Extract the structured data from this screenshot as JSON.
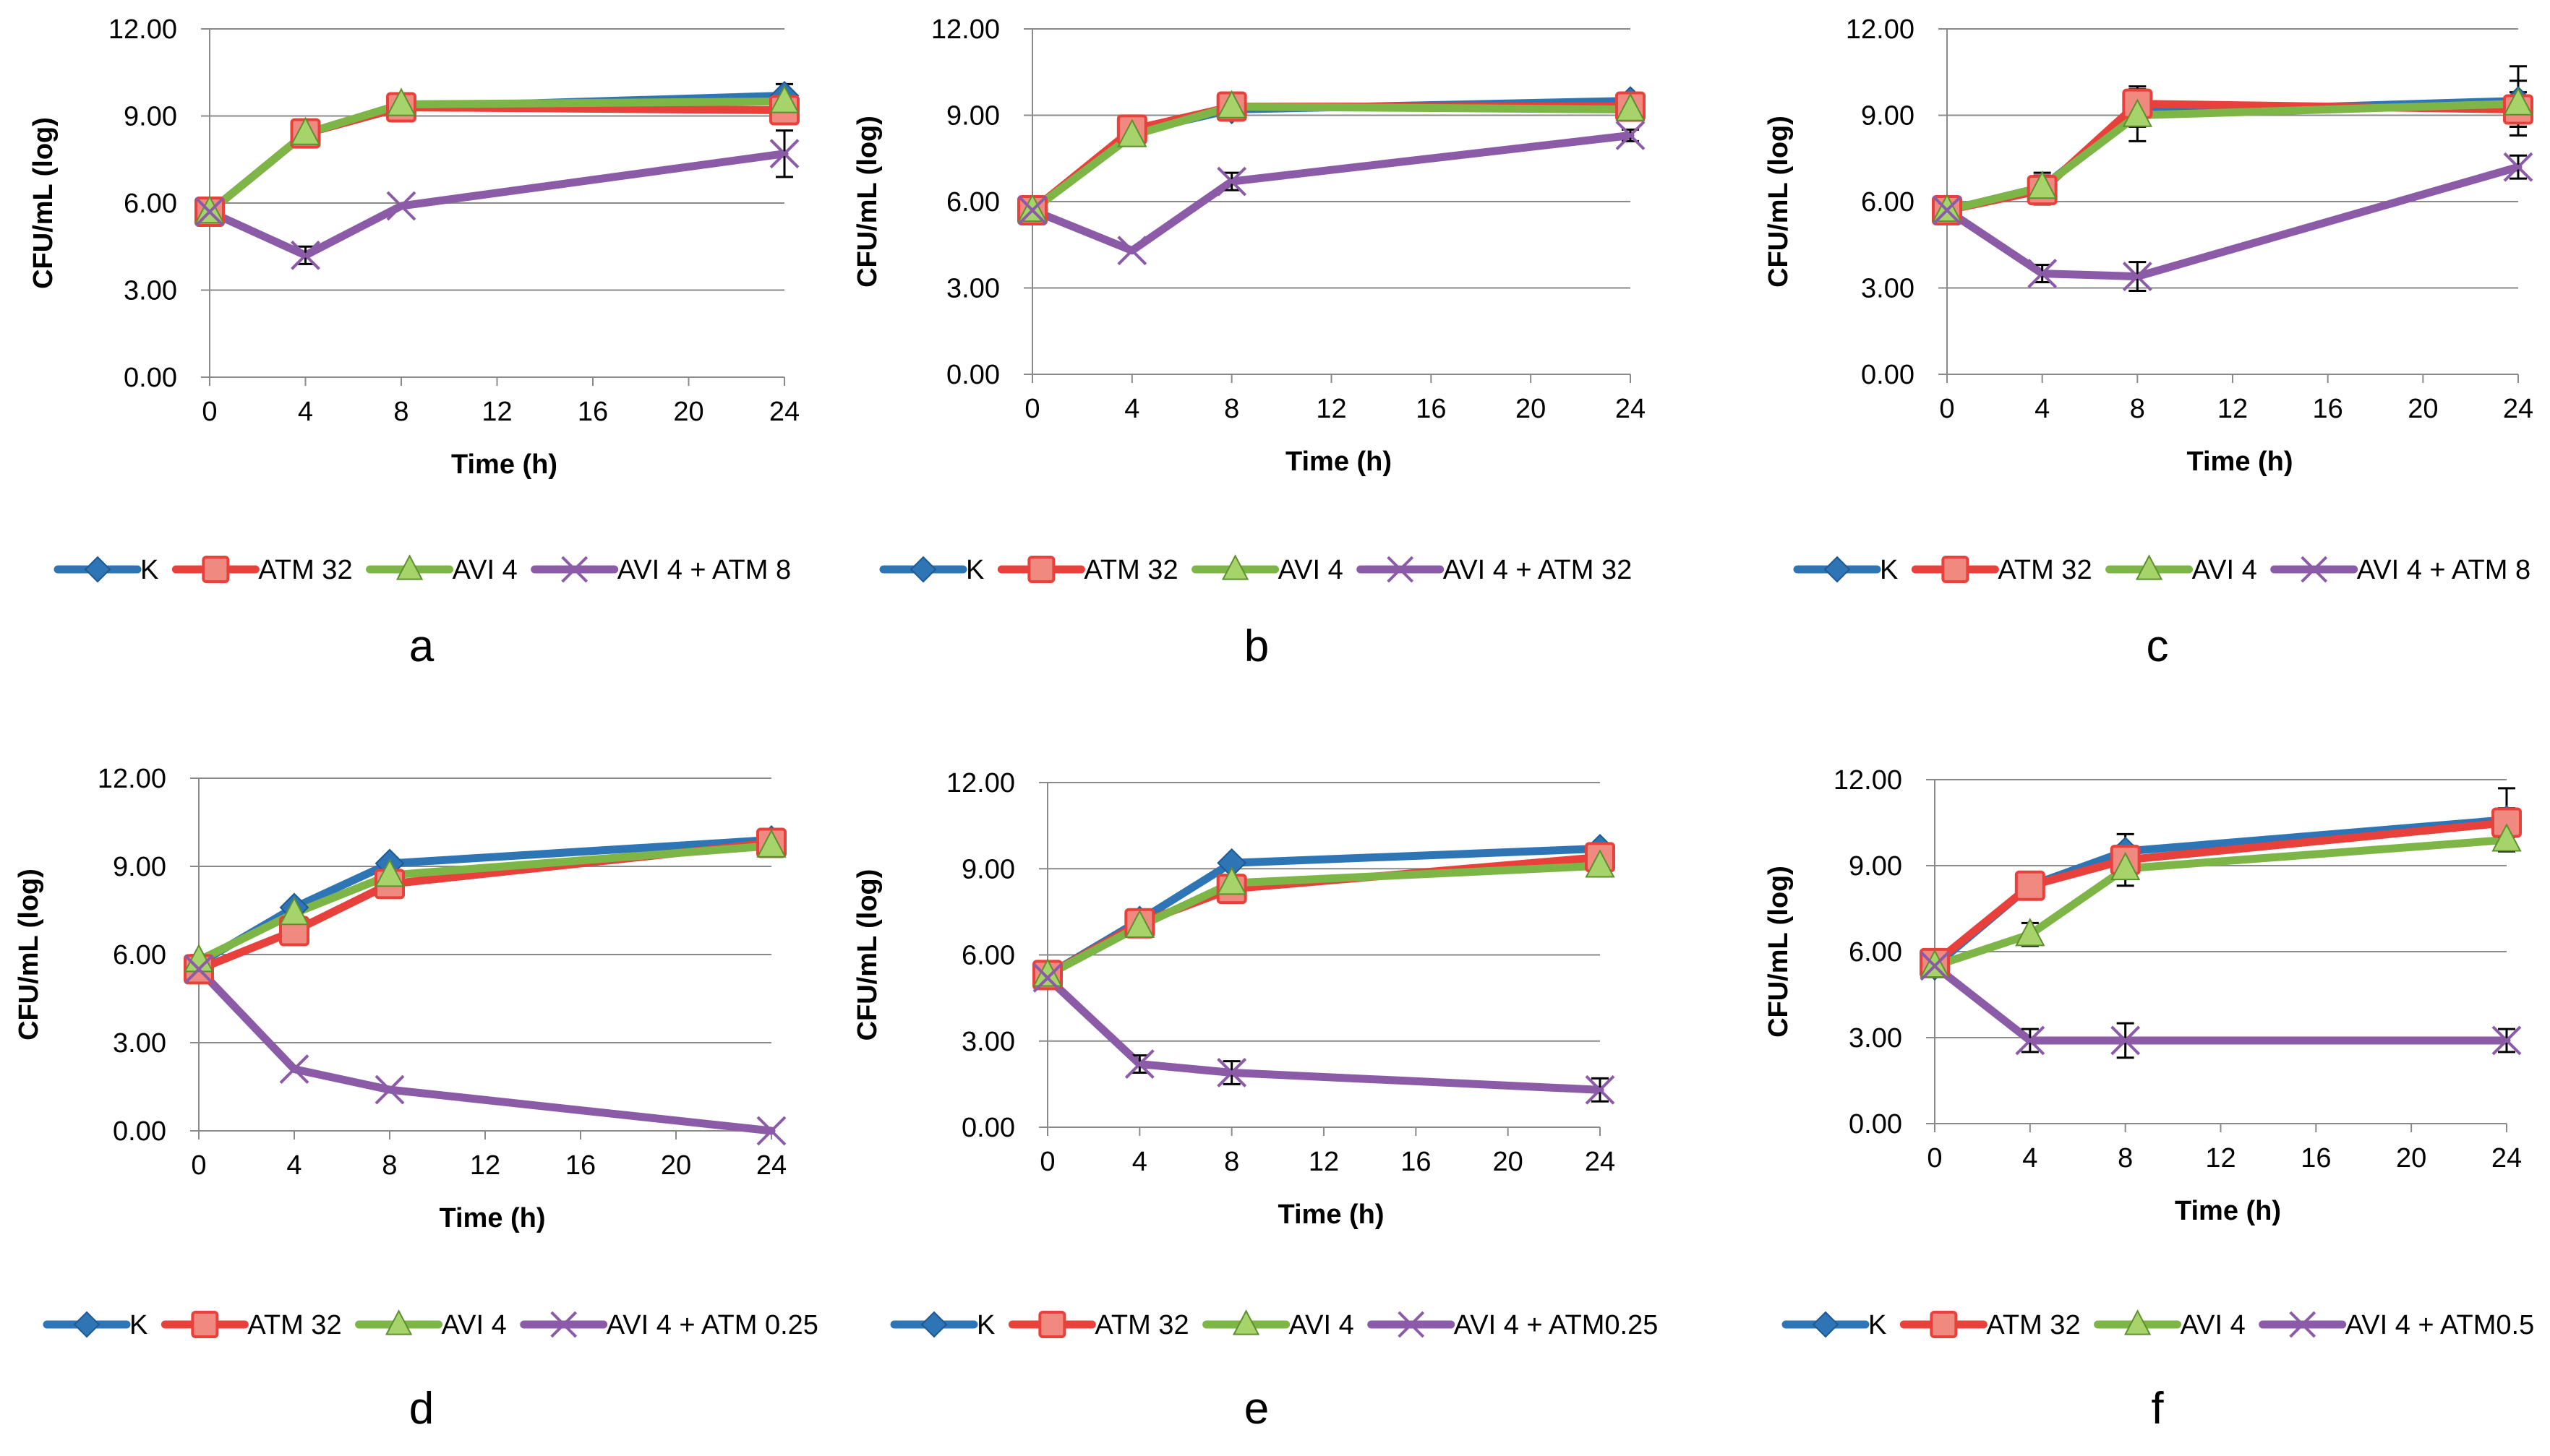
{
  "colors": {
    "K": "#2E75B6",
    "ATM 32": "#E8403A",
    "AVI 4": "#7DB547",
    "combo": "#8B5BA8",
    "grid": "#8A8A8A",
    "errorbar": "#000000"
  },
  "marker_icons": {
    "K": "diamond-icon",
    "ATM 32": "square-icon",
    "AVI 4": "triangle-icon",
    "combo": "x-mark-icon"
  },
  "chart_data": [
    {
      "type": "line",
      "panel": "a",
      "xlabel": "Time (h)",
      "ylabel": "CFU/mL (log)",
      "xticks": [
        "0",
        "4",
        "8",
        "12",
        "16",
        "20",
        "24"
      ],
      "yticks": [
        "0.00",
        "3.00",
        "6.00",
        "9.00",
        "12.00"
      ],
      "xlim": [
        0,
        24
      ],
      "ylim": [
        0,
        12
      ],
      "x": [
        0,
        4,
        8,
        24
      ],
      "series": [
        {
          "name": "K",
          "values": [
            5.7,
            8.4,
            9.3,
            9.7
          ],
          "errors": [
            0,
            0,
            0,
            0.4
          ]
        },
        {
          "name": "ATM 32",
          "values": [
            5.7,
            8.4,
            9.3,
            9.2
          ],
          "errors": [
            0,
            0,
            0,
            0.3
          ]
        },
        {
          "name": "AVI 4",
          "values": [
            5.7,
            8.4,
            9.4,
            9.5
          ],
          "errors": [
            0,
            0,
            0,
            0.3
          ]
        },
        {
          "name": "AVI 4 + ATM 8",
          "values": [
            5.7,
            4.2,
            5.9,
            7.7
          ],
          "errors": [
            0,
            0.3,
            0,
            0.8
          ]
        }
      ]
    },
    {
      "type": "line",
      "panel": "b",
      "xlabel": "Time (h)",
      "ylabel": "CFU/mL (log)",
      "xticks": [
        "0",
        "4",
        "8",
        "12",
        "16",
        "20",
        "24"
      ],
      "yticks": [
        "0.00",
        "3.00",
        "6.00",
        "9.00",
        "12.00"
      ],
      "xlim": [
        0,
        24
      ],
      "ylim": [
        0,
        12
      ],
      "x": [
        0,
        4,
        8,
        24
      ],
      "series": [
        {
          "name": "K",
          "values": [
            5.7,
            8.4,
            9.2,
            9.5
          ],
          "errors": [
            0,
            0,
            0,
            0.2
          ]
        },
        {
          "name": "ATM 32",
          "values": [
            5.7,
            8.5,
            9.3,
            9.3
          ],
          "errors": [
            0,
            0,
            0,
            0.2
          ]
        },
        {
          "name": "AVI 4",
          "values": [
            5.7,
            8.3,
            9.3,
            9.2
          ],
          "errors": [
            0,
            0,
            0,
            0.2
          ]
        },
        {
          "name": "AVI 4 + ATM 32",
          "values": [
            5.7,
            4.3,
            6.7,
            8.3
          ],
          "errors": [
            0,
            0,
            0.3,
            0.2
          ]
        }
      ]
    },
    {
      "type": "line",
      "panel": "c",
      "xlabel": "Time (h)",
      "ylabel": "CFU/mL (log)",
      "xticks": [
        "0",
        "4",
        "8",
        "12",
        "16",
        "20",
        "24"
      ],
      "yticks": [
        "0.00",
        "3.00",
        "6.00",
        "9.00",
        "12.00"
      ],
      "xlim": [
        0,
        24
      ],
      "ylim": [
        0,
        12
      ],
      "x": [
        0,
        4,
        8,
        24
      ],
      "series": [
        {
          "name": "K",
          "values": [
            5.7,
            6.5,
            9.1,
            9.5
          ],
          "errors": [
            0,
            0.5,
            0.5,
            1.2
          ]
        },
        {
          "name": "ATM 32",
          "values": [
            5.7,
            6.4,
            9.4,
            9.2
          ],
          "errors": [
            0,
            0.5,
            0.6,
            0.6
          ]
        },
        {
          "name": "AVI 4",
          "values": [
            5.7,
            6.5,
            9.0,
            9.4
          ],
          "errors": [
            0,
            0.4,
            0.9,
            0.8
          ]
        },
        {
          "name": "AVI 4 + ATM 8",
          "values": [
            5.7,
            3.5,
            3.4,
            7.2
          ],
          "errors": [
            0,
            0.3,
            0.5,
            0.4
          ]
        }
      ]
    },
    {
      "type": "line",
      "panel": "d",
      "xlabel": "Time (h)",
      "ylabel": "CFU/mL (log)",
      "xticks": [
        "0",
        "4",
        "8",
        "12",
        "16",
        "20",
        "24"
      ],
      "yticks": [
        "0.00",
        "3.00",
        "6.00",
        "9.00",
        "12.00"
      ],
      "xlim": [
        0,
        24
      ],
      "ylim": [
        0,
        12
      ],
      "x": [
        0,
        4,
        8,
        24
      ],
      "series": [
        {
          "name": "K",
          "values": [
            5.7,
            7.6,
            9.1,
            9.9
          ],
          "errors": [
            0,
            0,
            0,
            0
          ]
        },
        {
          "name": "ATM 32",
          "values": [
            5.5,
            6.8,
            8.4,
            9.8
          ],
          "errors": [
            0,
            0,
            0,
            0
          ]
        },
        {
          "name": "AVI 4",
          "values": [
            5.8,
            7.4,
            8.7,
            9.7
          ],
          "errors": [
            0,
            0,
            0,
            0
          ]
        },
        {
          "name": "AVI 4 + ATM 0.25",
          "values": [
            5.5,
            2.1,
            1.4,
            0.0
          ],
          "errors": [
            0,
            0,
            0,
            0
          ]
        }
      ]
    },
    {
      "type": "line",
      "panel": "e",
      "xlabel": "Time (h)",
      "ylabel": "CFU/mL (log)",
      "xticks": [
        "0",
        "4",
        "8",
        "12",
        "16",
        "20",
        "24"
      ],
      "yticks": [
        "0.00",
        "3.00",
        "6.00",
        "9.00",
        "12.00"
      ],
      "xlim": [
        0,
        24
      ],
      "ylim": [
        0,
        12
      ],
      "x": [
        0,
        4,
        8,
        24
      ],
      "series": [
        {
          "name": "K",
          "values": [
            5.3,
            7.2,
            9.2,
            9.7
          ],
          "errors": [
            0,
            0,
            0,
            0
          ]
        },
        {
          "name": "ATM 32",
          "values": [
            5.3,
            7.1,
            8.3,
            9.4
          ],
          "errors": [
            0,
            0,
            0,
            0
          ]
        },
        {
          "name": "AVI 4",
          "values": [
            5.3,
            7.0,
            8.5,
            9.1
          ],
          "errors": [
            0,
            0,
            0,
            0
          ]
        },
        {
          "name": "AVI 4 + ATM0.25",
          "values": [
            5.2,
            2.2,
            1.9,
            1.3
          ],
          "errors": [
            0,
            0.3,
            0.4,
            0.4
          ]
        }
      ]
    },
    {
      "type": "line",
      "panel": "f",
      "xlabel": "Time (h)",
      "ylabel": "CFU/mL (log)",
      "xticks": [
        "0",
        "4",
        "8",
        "12",
        "16",
        "20",
        "24"
      ],
      "yticks": [
        "0.00",
        "3.00",
        "6.00",
        "9.00",
        "12.00"
      ],
      "xlim": [
        0,
        24
      ],
      "ylim": [
        0,
        12
      ],
      "x": [
        0,
        4,
        8,
        24
      ],
      "series": [
        {
          "name": "K",
          "values": [
            5.5,
            8.3,
            9.5,
            10.6
          ],
          "errors": [
            0,
            0,
            0.6,
            1.1
          ]
        },
        {
          "name": "ATM 32",
          "values": [
            5.6,
            8.3,
            9.2,
            10.5
          ],
          "errors": [
            0,
            0,
            0.5,
            0.5
          ]
        },
        {
          "name": "AVI 4",
          "values": [
            5.5,
            6.6,
            8.9,
            9.9
          ],
          "errors": [
            0,
            0.4,
            0.6,
            0.4
          ]
        },
        {
          "name": "AVI 4 + ATM0.5",
          "values": [
            5.5,
            2.9,
            2.9,
            2.9
          ],
          "errors": [
            0,
            0.4,
            0.6,
            0.4
          ]
        }
      ]
    }
  ]
}
